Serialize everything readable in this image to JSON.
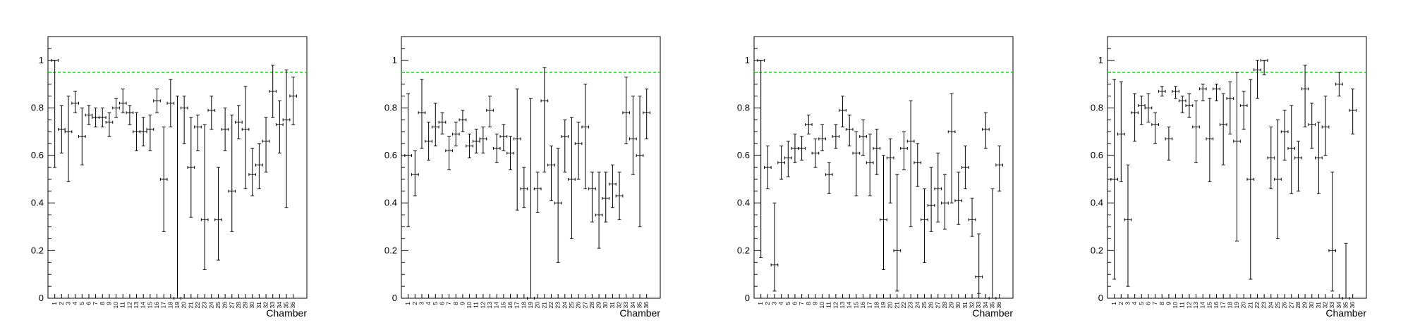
{
  "chart_data": [
    {
      "type": "scatter",
      "xlabel": "Chamber",
      "x": [
        1,
        2,
        3,
        4,
        5,
        6,
        7,
        8,
        9,
        10,
        11,
        12,
        13,
        14,
        15,
        16,
        17,
        18,
        19,
        20,
        21,
        22,
        23,
        24,
        25,
        26,
        27,
        28,
        29,
        30,
        31,
        32,
        33,
        34,
        35,
        36
      ],
      "series": [
        {
          "values": [
            1.0,
            0.71,
            0.7,
            0.82,
            0.68,
            0.77,
            0.76,
            0.76,
            0.74,
            0.8,
            0.82,
            0.78,
            0.7,
            0.7,
            0.71,
            0.83,
            0.5,
            0.82,
            0.0,
            0.8,
            0.55,
            0.72,
            0.33,
            0.79,
            0.33,
            0.71,
            0.45,
            0.74,
            0.71,
            0.52,
            0.56,
            0.66,
            0.87,
            0.73,
            0.75,
            0.85
          ],
          "err_low": [
            0.45,
            0.1,
            0.21,
            0.04,
            0.12,
            0.04,
            0.04,
            0.04,
            0.06,
            0.04,
            0.04,
            0.05,
            0.08,
            0.06,
            0.09,
            0.05,
            0.22,
            0.1,
            0.0,
            0.15,
            0.21,
            0.1,
            0.21,
            0.08,
            0.17,
            0.09,
            0.17,
            0.07,
            0.25,
            0.09,
            0.1,
            0.13,
            0.11,
            0.12,
            0.37,
            0.12
          ],
          "err_high": [
            0.0,
            0.1,
            0.15,
            0.05,
            0.12,
            0.04,
            0.04,
            0.04,
            0.04,
            0.04,
            0.06,
            0.03,
            0.08,
            0.06,
            0.06,
            0.05,
            0.22,
            0.1,
            0.85,
            0.05,
            0.21,
            0.05,
            0.4,
            0.06,
            0.22,
            0.09,
            0.32,
            0.07,
            0.18,
            0.11,
            0.09,
            0.1,
            0.11,
            0.1,
            0.21,
            0.08
          ]
        }
      ],
      "xlim": [
        0,
        38
      ],
      "ylim": [
        0,
        1.1
      ],
      "reference_line": {
        "y": 0.95,
        "color": "#00dd00",
        "style": "dashed"
      },
      "yticks": [
        0,
        0.2,
        0.4,
        0.6,
        0.8,
        1
      ],
      "grid": false
    },
    {
      "type": "scatter",
      "xlabel": "Chamber",
      "x": [
        1,
        2,
        3,
        4,
        5,
        6,
        7,
        8,
        9,
        10,
        11,
        12,
        13,
        14,
        15,
        16,
        17,
        18,
        19,
        20,
        21,
        22,
        23,
        24,
        25,
        26,
        27,
        28,
        29,
        30,
        31,
        32,
        33,
        34,
        35,
        36
      ],
      "series": [
        {
          "values": [
            0.6,
            0.52,
            0.78,
            0.66,
            0.72,
            0.74,
            0.62,
            0.69,
            0.75,
            0.64,
            0.66,
            0.67,
            0.79,
            0.63,
            0.68,
            0.61,
            0.67,
            0.46,
            0.0,
            0.46,
            0.83,
            0.56,
            0.4,
            0.68,
            0.5,
            0.65,
            0.72,
            0.46,
            0.35,
            0.42,
            0.48,
            0.43,
            0.78,
            0.67,
            0.6,
            0.78
          ],
          "err_low": [
            0.3,
            0.09,
            0.15,
            0.08,
            0.08,
            0.05,
            0.08,
            0.05,
            0.05,
            0.05,
            0.05,
            0.06,
            0.07,
            0.06,
            0.06,
            0.07,
            0.3,
            0.08,
            0.0,
            0.1,
            0.3,
            0.15,
            0.25,
            0.15,
            0.25,
            0.15,
            0.26,
            0.14,
            0.14,
            0.1,
            0.1,
            0.1,
            0.13,
            0.15,
            0.3,
            0.11
          ],
          "err_high": [
            0.26,
            0.1,
            0.14,
            0.08,
            0.1,
            0.04,
            0.06,
            0.05,
            0.04,
            0.05,
            0.05,
            0.05,
            0.06,
            0.06,
            0.05,
            0.07,
            0.21,
            0.09,
            0.84,
            0.07,
            0.14,
            0.08,
            0.23,
            0.07,
            0.26,
            0.09,
            0.18,
            0.07,
            0.18,
            0.11,
            0.08,
            0.1,
            0.15,
            0.18,
            0.25,
            0.1
          ]
        }
      ],
      "xlim": [
        0,
        38
      ],
      "ylim": [
        0,
        1.1
      ],
      "reference_line": {
        "y": 0.95,
        "color": "#00dd00",
        "style": "dashed"
      },
      "yticks": [
        0,
        0.2,
        0.4,
        0.6,
        0.8,
        1
      ],
      "grid": false
    },
    {
      "type": "scatter",
      "xlabel": "Chamber",
      "x": [
        1,
        2,
        3,
        4,
        5,
        6,
        7,
        8,
        9,
        10,
        11,
        12,
        13,
        14,
        15,
        16,
        17,
        18,
        19,
        20,
        21,
        22,
        23,
        24,
        25,
        26,
        27,
        28,
        29,
        30,
        31,
        32,
        33,
        34,
        35,
        36
      ],
      "series": [
        {
          "values": [
            1.0,
            0.55,
            0.14,
            0.57,
            0.59,
            0.63,
            0.63,
            0.73,
            0.61,
            0.67,
            0.52,
            0.68,
            0.79,
            0.71,
            0.61,
            0.68,
            0.57,
            0.63,
            0.33,
            0.59,
            0.2,
            0.63,
            0.66,
            0.57,
            0.33,
            0.39,
            0.46,
            0.4,
            0.7,
            0.41,
            0.55,
            0.33,
            0.09,
            0.71,
            0.0,
            0.56
          ],
          "err_low": [
            0.83,
            0.09,
            0.11,
            0.07,
            0.08,
            0.06,
            0.05,
            0.04,
            0.06,
            0.05,
            0.08,
            0.05,
            0.07,
            0.07,
            0.18,
            0.08,
            0.14,
            0.11,
            0.21,
            0.19,
            0.17,
            0.09,
            0.36,
            0.1,
            0.18,
            0.11,
            0.14,
            0.11,
            0.3,
            0.1,
            0.09,
            0.07,
            0.07,
            0.08,
            0.0,
            0.11
          ],
          "err_high": [
            0.0,
            0.09,
            0.26,
            0.07,
            0.07,
            0.06,
            0.05,
            0.04,
            0.06,
            0.06,
            0.05,
            0.05,
            0.06,
            0.06,
            0.09,
            0.07,
            0.12,
            0.08,
            0.27,
            0.08,
            0.32,
            0.07,
            0.17,
            0.08,
            0.13,
            0.16,
            0.15,
            0.12,
            0.16,
            0.12,
            0.09,
            0.09,
            0.18,
            0.07,
            0.46,
            0.08
          ]
        }
      ],
      "xlim": [
        0,
        38
      ],
      "ylim": [
        0,
        1.1
      ],
      "reference_line": {
        "y": 0.95,
        "color": "#00dd00",
        "style": "dashed"
      },
      "yticks": [
        0,
        0.2,
        0.4,
        0.6,
        0.8,
        1
      ],
      "grid": false
    },
    {
      "type": "scatter",
      "xlabel": "Chamber",
      "x": [
        1,
        2,
        3,
        4,
        5,
        6,
        7,
        8,
        9,
        10,
        11,
        12,
        13,
        14,
        15,
        16,
        17,
        18,
        19,
        20,
        21,
        22,
        23,
        24,
        25,
        26,
        27,
        28,
        29,
        30,
        31,
        32,
        33,
        34,
        35,
        36
      ],
      "series": [
        {
          "values": [
            0.5,
            0.69,
            0.33,
            0.78,
            0.81,
            0.8,
            0.73,
            0.87,
            0.67,
            0.87,
            0.83,
            0.81,
            0.72,
            0.88,
            0.67,
            0.88,
            0.73,
            0.84,
            0.66,
            0.81,
            0.5,
            0.96,
            1.0,
            0.59,
            0.5,
            0.7,
            0.63,
            0.59,
            0.88,
            0.73,
            0.59,
            0.72,
            0.2,
            0.9,
            0.0,
            0.79
          ],
          "err_low": [
            0.42,
            0.2,
            0.28,
            0.12,
            0.08,
            0.06,
            0.08,
            0.02,
            0.09,
            0.03,
            0.05,
            0.05,
            0.15,
            0.05,
            0.18,
            0.05,
            0.17,
            0.15,
            0.42,
            0.1,
            0.42,
            0.12,
            0.06,
            0.13,
            0.25,
            0.12,
            0.19,
            0.14,
            0.16,
            0.1,
            0.15,
            0.12,
            0.17,
            0.05,
            0.0,
            0.1
          ],
          "err_high": [
            0.42,
            0.22,
            0.23,
            0.08,
            0.04,
            0.06,
            0.05,
            0.02,
            0.05,
            0.02,
            0.02,
            0.05,
            0.11,
            0.02,
            0.17,
            0.02,
            0.13,
            0.07,
            0.29,
            0.06,
            0.42,
            0.04,
            0.0,
            0.13,
            0.25,
            0.09,
            0.18,
            0.07,
            0.1,
            0.09,
            0.15,
            0.13,
            0.33,
            0.05,
            0.23,
            0.09
          ]
        }
      ],
      "xlim": [
        0,
        38
      ],
      "ylim": [
        0,
        1.1
      ],
      "reference_line": {
        "y": 0.95,
        "color": "#00dd00",
        "style": "dashed"
      },
      "yticks": [
        0,
        0.2,
        0.4,
        0.6,
        0.8,
        1
      ],
      "grid": false
    }
  ]
}
